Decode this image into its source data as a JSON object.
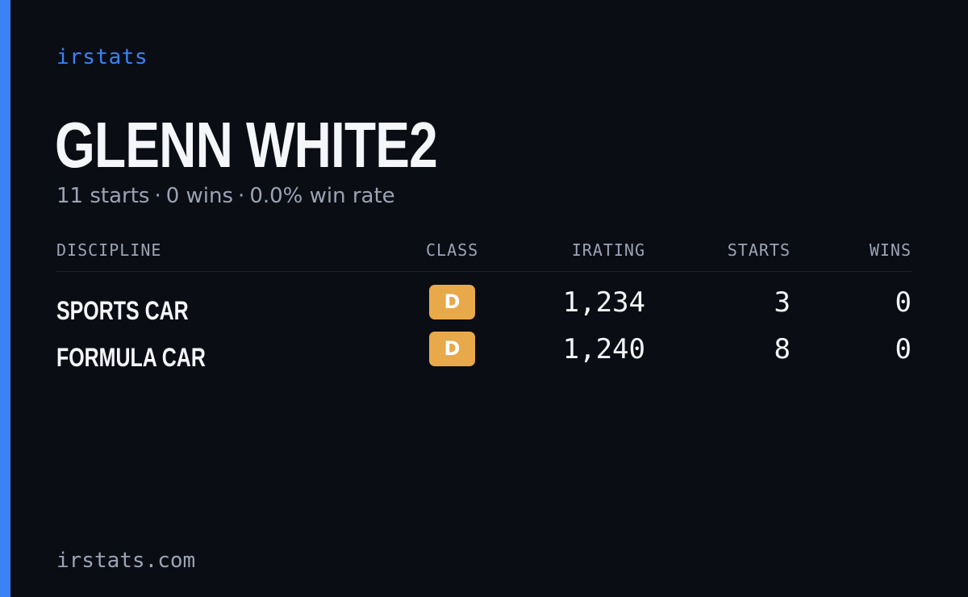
{
  "brand": "irstats",
  "player": {
    "name": "GLENN WHITE2"
  },
  "summary": {
    "starts": "11 starts",
    "wins": "0 wins",
    "win_rate": "0.0% win rate",
    "separator": "·"
  },
  "table": {
    "headers": {
      "discipline": "DISCIPLINE",
      "class": "CLASS",
      "irating": "IRATING",
      "starts": "STARTS",
      "wins": "WINS"
    },
    "rows": [
      {
        "discipline": "SPORTS CAR",
        "class": "D",
        "irating": "1,234",
        "starts": "3",
        "wins": "0"
      },
      {
        "discipline": "FORMULA CAR",
        "class": "D",
        "irating": "1,240",
        "starts": "8",
        "wins": "0"
      }
    ]
  },
  "footer": {
    "url": "irstats.com"
  },
  "colors": {
    "background": "#0a0d14",
    "accent": "#3b82f6",
    "class_d_badge": "#e8a94a",
    "muted_text": "#9ba3b4",
    "primary_text": "#f4f6fa"
  }
}
